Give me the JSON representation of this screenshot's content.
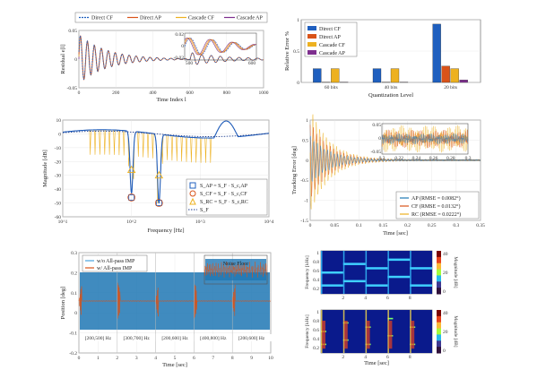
{
  "chart_data": [
    {
      "id": "residual",
      "type": "line",
      "xlabel": "Time Index l",
      "ylabel": "Residual e[l]",
      "xlim": [
        0,
        1000
      ],
      "x_ticks": [
        "0",
        "200",
        "400",
        "600",
        "800",
        "1000"
      ],
      "y_ticks": [
        "0.05",
        "0",
        "-0.05"
      ],
      "series": [
        {
          "name": "Direct CF",
          "color": "#1f5fbf",
          "dash": "2,1"
        },
        {
          "name": "Direct AP",
          "color": "#d95319"
        },
        {
          "name": "Cascade CF",
          "color": "#edb120"
        },
        {
          "name": "Cascade AP",
          "color": "#7e2f8e"
        }
      ],
      "inset": {
        "x_ticks": [
          "500",
          "600"
        ],
        "y_ticks": [
          "0.02",
          "0",
          "-0.02"
        ]
      }
    },
    {
      "id": "quantization",
      "type": "bar",
      "xlabel": "Quantization Level",
      "ylabel": "Relative Error %",
      "categories": [
        "60 bits",
        "40 bits",
        "20 bits"
      ],
      "ylim": [
        0,
        1
      ],
      "y_ticks": [
        "0",
        "0.5",
        "1"
      ],
      "series": [
        {
          "name": "Direct CF",
          "color": "#1f5fbf",
          "values": [
            0.22,
            0.22,
            0.93
          ]
        },
        {
          "name": "Direct AP",
          "color": "#d95319",
          "values": [
            0.005,
            0.005,
            0.26
          ]
        },
        {
          "name": "Cascade CF",
          "color": "#edb120",
          "values": [
            0.22,
            0.22,
            0.22
          ]
        },
        {
          "name": "Cascade AP",
          "color": "#7e2f8e",
          "values": [
            0.005,
            0.005,
            0.04
          ]
        }
      ]
    },
    {
      "id": "frequency-response",
      "type": "line",
      "xlabel": "Frequency [Hz]",
      "ylabel": "Magnitude [dB]",
      "x_ticks": [
        "10^1",
        "10^2",
        "10^3",
        "10^4"
      ],
      "y_ticks": [
        "10",
        "0",
        "-10",
        "-20",
        "-30",
        "-40",
        "-50",
        "-60"
      ],
      "ylim": [
        -60,
        10
      ],
      "legend": [
        {
          "label": "S_AP = S_F · S_c,AP",
          "marker": "square",
          "color": "#1f5fbf"
        },
        {
          "label": "S_CF = S_F · S_c,CF",
          "marker": "circle",
          "color": "#d95319"
        },
        {
          "label": "S_RC = S_F · S_c,RC",
          "marker": "triangle",
          "color": "#edb120"
        },
        {
          "label": "S_F",
          "marker": "dots",
          "color": "#1f3f8f"
        }
      ]
    },
    {
      "id": "tracking-error",
      "type": "line",
      "xlabel": "Time [sec]",
      "ylabel": "Tracking Error [deg]",
      "xlim": [
        0,
        0.35
      ],
      "ylim": [
        -1.5,
        1
      ],
      "x_ticks": [
        "0",
        "0.05",
        "0.1",
        "0.15",
        "0.2",
        "0.25",
        "0.3",
        "0.35"
      ],
      "y_ticks": [
        "1",
        "0.5",
        "0",
        "-0.5",
        "-1",
        "-1.5"
      ],
      "legend": [
        {
          "label": "AP (RMSE = 0.0082°)",
          "color": "#1f77b4"
        },
        {
          "label": "CF (RMSE = 0.0132°)",
          "color": "#d95319"
        },
        {
          "label": "RC (RMSE = 0.0222°)",
          "color": "#edb120"
        }
      ],
      "inset": {
        "x_ticks": [
          "0.2",
          "0.22",
          "0.24",
          "0.26",
          "0.28",
          "0.3"
        ],
        "y_ticks": [
          "0.05",
          "0",
          "-0.05"
        ]
      }
    },
    {
      "id": "position",
      "type": "line",
      "xlabel": "Time [sec]",
      "ylabel": "Position [deg]",
      "xlim": [
        0,
        10
      ],
      "x_ticks": [
        "0",
        "1",
        "2",
        "3",
        "4",
        "5",
        "6",
        "7",
        "8",
        "9",
        "10"
      ],
      "y_ticks": [
        "0.3",
        "0.2",
        "0.1",
        "0",
        "-0.1",
        "-0.2"
      ],
      "legend": [
        {
          "label": "w/o All-pass IMP",
          "color": "#4aa3df"
        },
        {
          "label": "w/ All-pass IMP",
          "color": "#d95319"
        }
      ],
      "segments": [
        "[200,500] Hz",
        "[300,700] Hz",
        "[200,600] Hz",
        "[400,800] Hz",
        "[200,600] Hz"
      ],
      "inset_label": "Noise Floor"
    },
    {
      "id": "spectrogram-top",
      "type": "heatmap",
      "ylabel": "Frequency [kHz]",
      "colorbar_label": "Magnitude [dB]",
      "x_ticks": [
        "2",
        "4",
        "6",
        "8"
      ],
      "y_ticks": [
        "1",
        "0.8",
        "0.6",
        "0.4",
        "0.2"
      ],
      "cbar_ticks": [
        "40",
        "20",
        "0"
      ]
    },
    {
      "id": "spectrogram-bottom",
      "type": "heatmap",
      "xlabel": "Time [sec]",
      "ylabel": "Frequency [kHz]",
      "colorbar_label": "Magnitude [dB]",
      "x_ticks": [
        "2",
        "4",
        "6",
        "8"
      ],
      "y_ticks": [
        "1",
        "0.8",
        "0.6",
        "0.4",
        "0.2"
      ],
      "cbar_ticks": [
        "40",
        "20",
        "0"
      ]
    }
  ]
}
